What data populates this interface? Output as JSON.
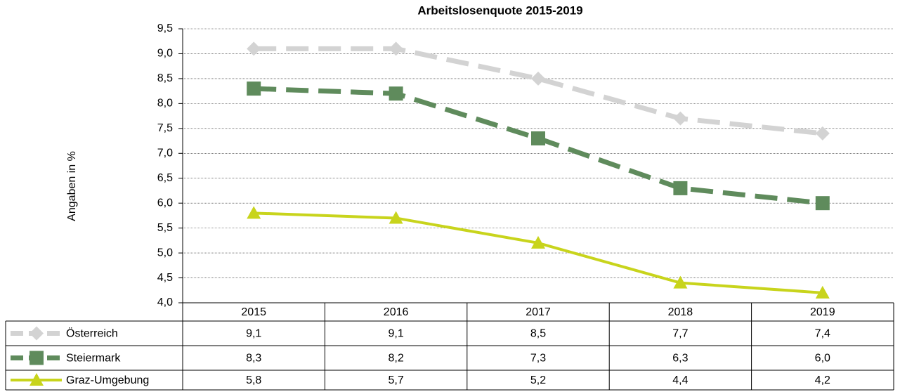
{
  "chart_data": {
    "type": "line",
    "title": "Arbeitslosenquote 2015-2019",
    "y_label": "Angaben in %",
    "categories": [
      "2015",
      "2016",
      "2017",
      "2018",
      "2019"
    ],
    "series": [
      {
        "name": "Österreich",
        "color": "#d3d3d3",
        "line_style": "dashed",
        "marker": "diamond",
        "values": [
          9.1,
          9.1,
          8.5,
          7.7,
          7.4
        ],
        "value_labels": [
          "9,1",
          "9,1",
          "8,5",
          "7,7",
          "7,4"
        ]
      },
      {
        "name": "Steiermark",
        "color": "#5f8b5c",
        "line_style": "dashed",
        "marker": "square",
        "values": [
          8.3,
          8.2,
          7.3,
          6.3,
          6.0
        ],
        "value_labels": [
          "8,3",
          "8,2",
          "7,3",
          "6,3",
          "6,0"
        ]
      },
      {
        "name": "Graz-Umgebung",
        "color": "#c8d41c",
        "line_style": "solid",
        "marker": "triangle",
        "values": [
          5.8,
          5.7,
          5.2,
          4.4,
          4.2
        ],
        "value_labels": [
          "5,8",
          "5,7",
          "5,2",
          "4,4",
          "4,2"
        ]
      }
    ],
    "ylim": [
      4.0,
      9.5
    ],
    "yticks": [
      {
        "value": 4.0,
        "label": "4,0"
      },
      {
        "value": 4.5,
        "label": "4,5"
      },
      {
        "value": 5.0,
        "label": "5,0"
      },
      {
        "value": 5.5,
        "label": "5,5"
      },
      {
        "value": 6.0,
        "label": "6,0"
      },
      {
        "value": 6.5,
        "label": "6,5"
      },
      {
        "value": 7.0,
        "label": "7,0"
      },
      {
        "value": 7.5,
        "label": "7,5"
      },
      {
        "value": 8.0,
        "label": "8,0"
      },
      {
        "value": 8.5,
        "label": "8,5"
      },
      {
        "value": 9.0,
        "label": "9,0"
      },
      {
        "value": 9.5,
        "label": "9,5"
      }
    ],
    "grid": true
  }
}
